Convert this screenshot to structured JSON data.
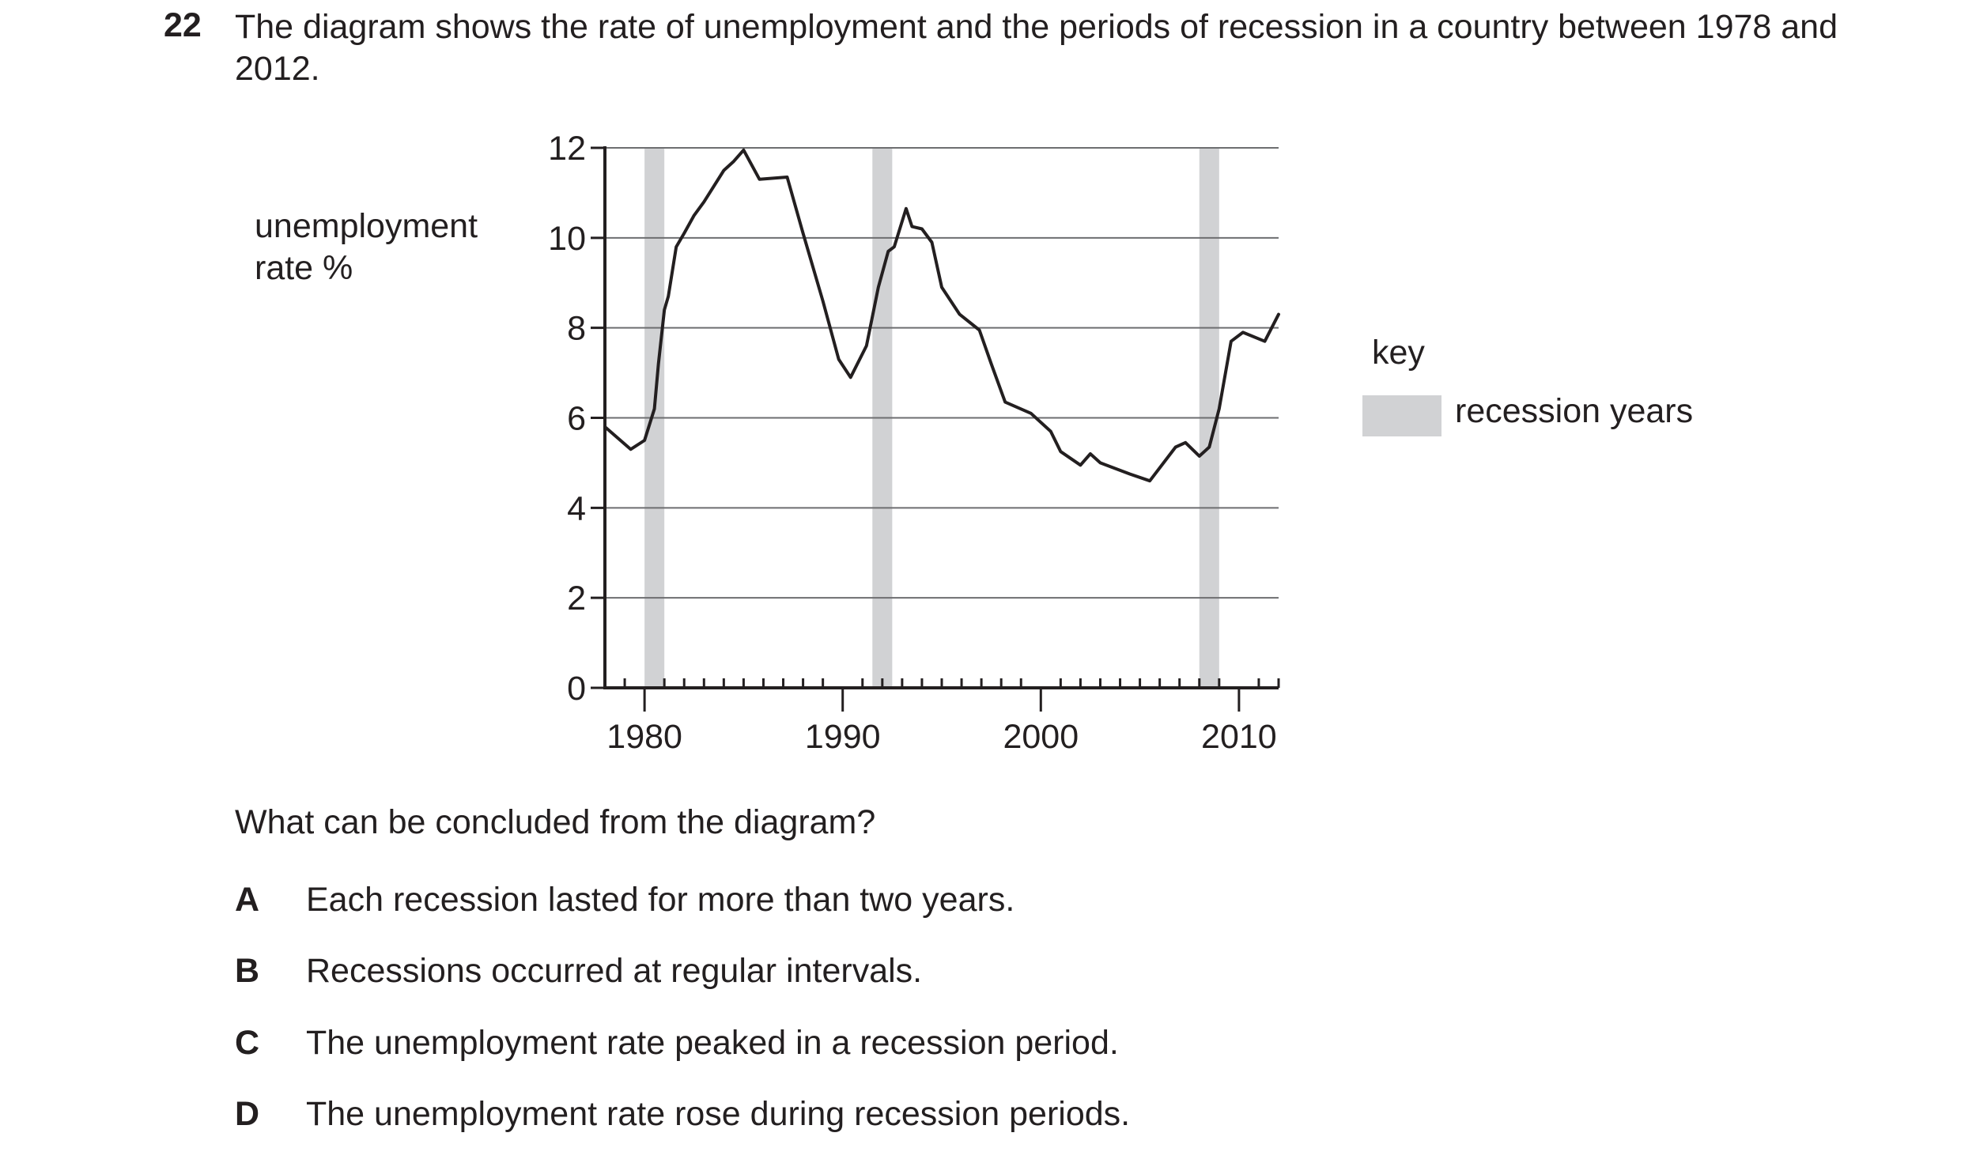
{
  "question": {
    "number": "22",
    "stem": "The diagram shows the rate of unemployment and the periods of recession in a country between 1978 and 2012.",
    "prompt": "What can be concluded from the diagram?",
    "options": [
      {
        "letter": "A",
        "text": "Each recession lasted for more than two years."
      },
      {
        "letter": "B",
        "text": "Recessions occurred at regular intervals."
      },
      {
        "letter": "C",
        "text": "The unemployment rate peaked in a recession period."
      },
      {
        "letter": "D",
        "text": "The unemployment rate rose during recession periods."
      }
    ]
  },
  "key": {
    "title": "key",
    "label": "recession years"
  },
  "chart_data": {
    "type": "line",
    "title": "",
    "xlabel": "",
    "ylabel": "unemployment\nrate %",
    "xlim": [
      1978,
      2012
    ],
    "ylim": [
      0,
      12
    ],
    "x_ticks": [
      1980,
      1990,
      2000,
      2010
    ],
    "x_tick_labels": [
      "1980",
      "1990",
      "2000",
      "2010"
    ],
    "y_ticks": [
      0,
      2,
      4,
      6,
      8,
      10,
      12
    ],
    "y_tick_labels": [
      "0",
      "2",
      "4",
      "6",
      "8",
      "10",
      "12"
    ],
    "grid": "horizontal",
    "legend": "right",
    "recession_periods": [
      [
        1980.0,
        1981.0
      ],
      [
        1991.5,
        1992.5
      ],
      [
        2008.0,
        2009.0
      ]
    ],
    "series": [
      {
        "x": [
          1978.0,
          1979.3,
          1980.0,
          1980.5,
          1980.7,
          1981.0,
          1981.2,
          1981.6,
          1982.0,
          1982.5,
          1983.0,
          1984.0,
          1984.5,
          1985.0,
          1985.8,
          1987.2,
          1988.0,
          1989.0,
          1989.8,
          1990.4,
          1991.2,
          1991.8,
          1992.3,
          1992.6,
          1993.2,
          1993.5,
          1994.0,
          1994.5,
          1995.0,
          1995.9,
          1996.9,
          1997.5,
          1998.2,
          1999.5,
          2000.5,
          2001.0,
          2002.0,
          2002.5,
          2003.0,
          2004.5,
          2005.5,
          2006.8,
          2007.3,
          2008.0,
          2008.5,
          2009.0,
          2009.6,
          2010.2,
          2011.3,
          2012.0
        ],
        "y": [
          5.8,
          5.3,
          5.5,
          6.2,
          7.2,
          8.4,
          8.7,
          9.8,
          10.1,
          10.5,
          10.8,
          11.5,
          11.7,
          11.95,
          11.3,
          11.35,
          10.1,
          8.6,
          7.3,
          6.9,
          7.6,
          8.9,
          9.7,
          9.8,
          10.65,
          10.25,
          10.2,
          9.9,
          8.9,
          8.3,
          7.95,
          7.2,
          6.35,
          6.1,
          5.7,
          5.25,
          4.95,
          5.2,
          5.0,
          4.75,
          4.6,
          5.35,
          5.45,
          5.15,
          5.35,
          6.2,
          7.7,
          7.9,
          7.7,
          8.3
        ]
      }
    ]
  }
}
